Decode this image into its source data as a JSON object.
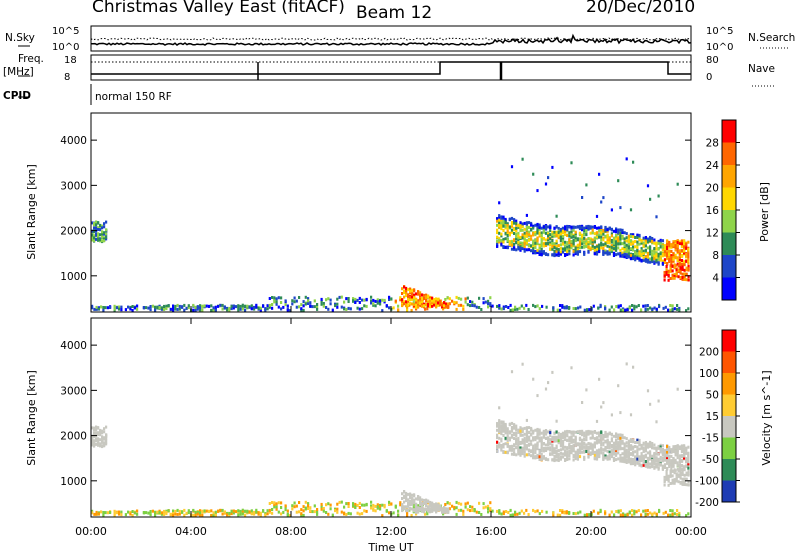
{
  "header": {
    "station": "Christmas Valley East (fitACF)",
    "beam": "Beam 12",
    "date": "20/Dec/2010"
  },
  "top_panels": {
    "nsky_label": "N.Sky",
    "nsearch_label": "N.Search",
    "nsky_ticks": [
      "10^5",
      "10^0"
    ],
    "nsearch_ticks": [
      "10^5",
      "10^0"
    ],
    "freq_label": "Freq.",
    "freq_unit": "[MHz]",
    "freq_ticks": [
      "18",
      "8"
    ],
    "nave_label": "Nave",
    "nave_ticks": [
      "80",
      "0"
    ],
    "cpid_label": "CPID",
    "cpid_value": "normal 150 RF"
  },
  "chart_data": [
    {
      "type": "heatmap",
      "name": "power",
      "ylabel": "Slant Range [km]",
      "y_ticks": [
        "1000",
        "2000",
        "3000",
        "4000"
      ],
      "ylim": [
        200,
        4600
      ],
      "xlim": [
        0,
        24
      ],
      "colorbar": {
        "label": "Power [dB]",
        "ticks": [
          "4",
          "8",
          "12",
          "16",
          "20",
          "24",
          "28"
        ],
        "colors": [
          "#0000ff",
          "#1e46c8",
          "#2e8b57",
          "#8fd44a",
          "#ffd700",
          "#ffa500",
          "#ff6600",
          "#ff0000"
        ]
      }
    },
    {
      "type": "heatmap",
      "name": "velocity",
      "ylabel": "Slant Range [km]",
      "y_ticks": [
        "1000",
        "2000",
        "3000",
        "4000"
      ],
      "ylim": [
        200,
        4600
      ],
      "xlim": [
        0,
        24
      ],
      "colorbar": {
        "label": "Velocity [m s^-1]",
        "ticks": [
          "200",
          "100",
          "50",
          "15",
          "-15",
          "-50",
          "-100",
          "-200"
        ],
        "colors": [
          "#1e3cb4",
          "#2e8b57",
          "#7cd042",
          "#c8c8c0",
          "#ffcc33",
          "#ff9900",
          "#ff5500",
          "#ff0000"
        ]
      },
      "x_ticks": [
        "00:00",
        "04:00",
        "08:00",
        "12:00",
        "16:00",
        "20:00",
        "00:00"
      ],
      "xlabel": "Time UT"
    }
  ]
}
